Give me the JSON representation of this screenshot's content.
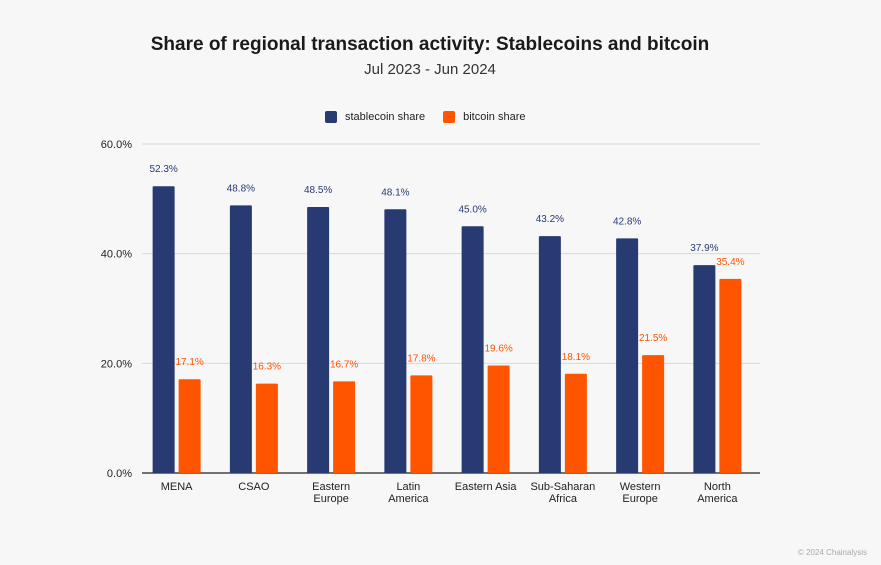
{
  "chart_data": {
    "type": "bar",
    "title": "Share of regional transaction activity: Stablecoins and bitcoin",
    "subtitle": "Jul 2023 - Jun 2024",
    "xlabel": "",
    "ylabel": "",
    "ylim": [
      0,
      60
    ],
    "yticks": [
      "0.0%",
      "20.0%",
      "40.0%",
      "60.0%"
    ],
    "ytick_values": [
      0,
      20,
      40,
      60
    ],
    "grid": true,
    "legend_position": "top",
    "categories": [
      [
        "MENA"
      ],
      [
        "CSAO"
      ],
      [
        "Eastern",
        "Europe"
      ],
      [
        "Latin",
        "America"
      ],
      [
        "Eastern Asia"
      ],
      [
        "Sub-Saharan",
        "Africa"
      ],
      [
        "Western",
        "Europe"
      ],
      [
        "North",
        "America"
      ]
    ],
    "series": [
      {
        "name": "stablecoin share",
        "color": "#283a72",
        "label_color": "#283a72",
        "values": [
          52.3,
          48.8,
          48.5,
          48.1,
          45.0,
          43.2,
          42.8,
          37.9
        ],
        "labels": [
          "52.3%",
          "48.8%",
          "48.5%",
          "48.1%",
          "45.0%",
          "43.2%",
          "42.8%",
          "37.9%"
        ]
      },
      {
        "name": "bitcoin share",
        "color": "#ff5400",
        "label_color": "#ff5400",
        "values": [
          17.1,
          16.3,
          16.7,
          17.8,
          19.6,
          18.1,
          21.5,
          35.4
        ],
        "labels": [
          "17.1%",
          "16.3%",
          "16.7%",
          "17.8%",
          "19.6%",
          "18.1%",
          "21.5%",
          "35.4%"
        ]
      }
    ]
  },
  "footer": "© 2024 Chainalysis"
}
